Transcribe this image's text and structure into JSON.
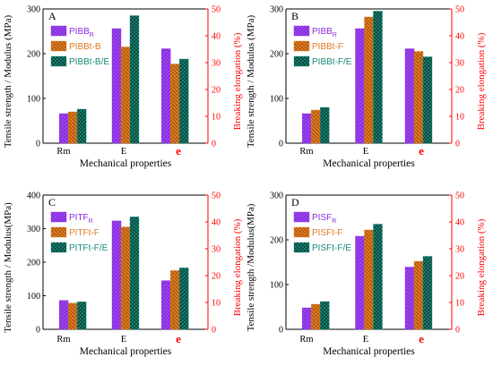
{
  "colors": {
    "purple": "#8a2be2",
    "orange": "#e07b20",
    "teal": "#1a8a7a",
    "red": "#ff0000"
  },
  "chart_data": [
    {
      "type": "bar",
      "panel_label": "A",
      "categories": [
        "Rm",
        "E",
        "e"
      ],
      "ylabel": "Tensile strength / Modulus (MPa)",
      "y2label": "Breaking elongation (%)",
      "xlabel": "Mechanical properties",
      "ylim": [
        0,
        300
      ],
      "y2lim": [
        0,
        50
      ],
      "yticks": [
        "0",
        "100",
        "200",
        "300"
      ],
      "y2ticks": [
        "0",
        "10",
        "20",
        "30",
        "40",
        "50"
      ],
      "legend_position": "top-left",
      "series": [
        {
          "name": "PIBB",
          "sub": "R",
          "values": [
            66,
            256,
            211
          ]
        },
        {
          "name": "PIBBt-B",
          "sub": "",
          "values": [
            70,
            215,
            177
          ]
        },
        {
          "name": "PIBBt-B/E",
          "sub": "",
          "values": [
            76,
            285,
            188
          ]
        }
      ]
    },
    {
      "type": "bar",
      "panel_label": "B",
      "categories": [
        "Rm",
        "E",
        "e"
      ],
      "ylabel": "Tensile strength / Modulus (MPa)",
      "y2label": "Breaking elongation (%)",
      "xlabel": "Mechanical properties",
      "ylim": [
        0,
        300
      ],
      "y2lim": [
        0,
        50
      ],
      "yticks": [
        "0",
        "100",
        "200",
        "300"
      ],
      "y2ticks": [
        "0",
        "10",
        "20",
        "30",
        "40",
        "50"
      ],
      "legend_position": "top-left",
      "series": [
        {
          "name": "PIBB",
          "sub": "R",
          "values": [
            66,
            256,
            211
          ]
        },
        {
          "name": "PIBBt-F",
          "sub": "",
          "values": [
            74,
            282,
            205
          ]
        },
        {
          "name": "PIBBt-F/E",
          "sub": "",
          "values": [
            80,
            295,
            193
          ]
        }
      ]
    },
    {
      "type": "bar",
      "panel_label": "C",
      "categories": [
        "Rm",
        "E",
        "e"
      ],
      "ylabel": "Tensile strength / Modulus(MPa)",
      "y2label": "Breaking elongation (%)",
      "xlabel": "Mechanical properties",
      "ylim": [
        0,
        400
      ],
      "y2lim": [
        0,
        50
      ],
      "yticks": [
        "0",
        "100",
        "200",
        "300",
        "400"
      ],
      "y2ticks": [
        "0",
        "10",
        "20",
        "30",
        "40",
        "50"
      ],
      "legend_position": "top-left",
      "series": [
        {
          "name": "PITF",
          "sub": "R",
          "values": [
            86,
            323,
            145
          ]
        },
        {
          "name": "PITFt-F",
          "sub": "",
          "values": [
            78,
            305,
            175
          ]
        },
        {
          "name": "PITFt-F/E",
          "sub": "",
          "values": [
            82,
            335,
            183
          ]
        }
      ]
    },
    {
      "type": "bar",
      "panel_label": "D",
      "categories": [
        "Rm",
        "E",
        "e"
      ],
      "ylabel": "Tensile strength /Modulus(MPa)",
      "y2label": "Breaking elongation (%)",
      "xlabel": "Mechanical properties",
      "ylim": [
        0,
        300
      ],
      "y2lim": [
        0,
        50
      ],
      "yticks": [
        "0",
        "100",
        "200",
        "300"
      ],
      "y2ticks": [
        "0",
        "10",
        "20",
        "30",
        "40",
        "50"
      ],
      "legend_position": "top-left",
      "series": [
        {
          "name": "PISF",
          "sub": "R",
          "values": [
            48,
            208,
            139
          ]
        },
        {
          "name": "PISFt-F",
          "sub": "",
          "values": [
            56,
            222,
            152
          ]
        },
        {
          "name": "PISFt-F/E",
          "sub": "",
          "values": [
            62,
            235,
            163
          ]
        }
      ]
    }
  ]
}
